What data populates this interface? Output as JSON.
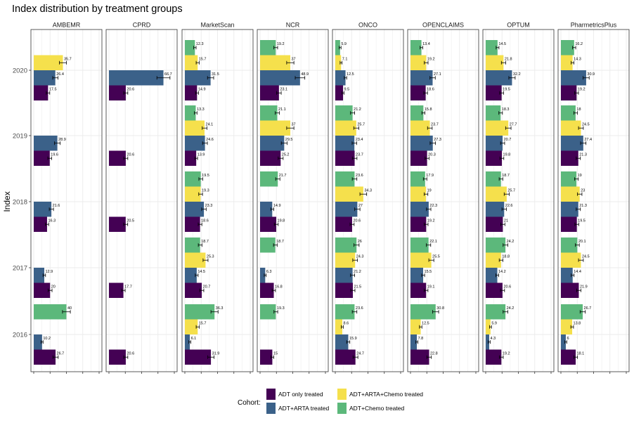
{
  "chart_data": {
    "type": "bar",
    "orientation": "horizontal",
    "facet": "columns",
    "title": "Index distribution by treatment groups",
    "ylabel": "Index",
    "xlabel": "",
    "legend": {
      "title": "Cohort:",
      "position": "bottom",
      "entries": [
        {
          "name": "ADT only treated",
          "color": "#440154"
        },
        {
          "name": "ADT+ARTA treated",
          "color": "#3b6189"
        },
        {
          "name": "ADT+ARTA+Chemo treated",
          "color": "#f5e04c"
        },
        {
          "name": "ADT+Chemo treated",
          "color": "#5cb87b"
        }
      ]
    },
    "years": [
      "2016",
      "2017",
      "2018",
      "2019",
      "2020"
    ],
    "xlim": [
      0,
      80
    ],
    "grid": true,
    "facets": [
      {
        "name": "AMBEMR",
        "values": {
          "2016": [
            26.7,
            10.2,
            null,
            40
          ],
          "2017": [
            20,
            12.9,
            null,
            null
          ],
          "2018": [
            16.3,
            21.6,
            null,
            null
          ],
          "2019": [
            19.6,
            28.9,
            null,
            null
          ],
          "2020": [
            17.5,
            26.4,
            35.7,
            null
          ]
        }
      },
      {
        "name": "CPRD",
        "values": {
          "2016": [
            20.6,
            null,
            null,
            null
          ],
          "2017": [
            17.7,
            null,
            null,
            null
          ],
          "2018": [
            20.5,
            null,
            null,
            null
          ],
          "2019": [
            20.6,
            null,
            null,
            null
          ],
          "2020": [
            20.6,
            66.7,
            null,
            null
          ]
        }
      },
      {
        "name": "MarketScan",
        "values": {
          "2016": [
            31.9,
            6.1,
            15.7,
            36.3
          ],
          "2017": [
            20.7,
            14.5,
            25.3,
            18.7
          ],
          "2018": [
            18.6,
            23.3,
            19.3,
            19.5
          ],
          "2019": [
            13.9,
            24.6,
            24.1,
            13.3
          ],
          "2020": [
            14.9,
            31.5,
            15.7,
            12.3
          ]
        }
      },
      {
        "name": "NCR",
        "values": {
          "2016": [
            15,
            null,
            null,
            19.3
          ],
          "2017": [
            16.8,
            6.3,
            null,
            18.7
          ],
          "2018": [
            19.8,
            14.9,
            null,
            21.7
          ],
          "2019": [
            25.2,
            29.5,
            37,
            21.1
          ],
          "2020": [
            23.1,
            48.9,
            37,
            19.2
          ]
        }
      },
      {
        "name": "ONCO",
        "values": {
          "2016": [
            24.7,
            15.9,
            8.6,
            23.6
          ],
          "2017": [
            21.5,
            21.2,
            24.3,
            26
          ],
          "2018": [
            20.6,
            27,
            34.3,
            23.6
          ],
          "2019": [
            23.7,
            23.4,
            25.7,
            21.2
          ],
          "2020": [
            9.5,
            12.5,
            7.1,
            5.9
          ]
        }
      },
      {
        "name": "OPENCLAIMS",
        "values": {
          "2016": [
            22.8,
            7.8,
            12.5,
            30.8
          ],
          "2017": [
            19.1,
            15.5,
            25.5,
            22.1
          ],
          "2018": [
            19.2,
            22.3,
            19,
            17.9
          ],
          "2019": [
            20.3,
            27.3,
            23.7,
            15.8
          ],
          "2020": [
            18.6,
            27.1,
            19.2,
            13.4
          ]
        }
      },
      {
        "name": "OPTUM",
        "values": {
          "2016": [
            19.2,
            4.3,
            5.9,
            24.2
          ],
          "2017": [
            20.6,
            14.2,
            18.8,
            24.2
          ],
          "2018": [
            21,
            22.6,
            25.7,
            18.7
          ],
          "2019": [
            19.8,
            20.7,
            27.7,
            18.3
          ],
          "2020": [
            19.5,
            32.2,
            21.8,
            14.5
          ]
        }
      },
      {
        "name": "PharmetricsPlus",
        "values": {
          "2016": [
            18.1,
            6,
            13.8,
            26.7
          ],
          "2017": [
            21.9,
            14.4,
            24.5,
            20.1
          ],
          "2018": [
            19.5,
            21.3,
            23,
            19
          ],
          "2019": [
            21.3,
            27.4,
            24.5,
            18
          ],
          "2020": [
            19.2,
            30.9,
            14.3,
            16.2
          ]
        }
      }
    ]
  }
}
